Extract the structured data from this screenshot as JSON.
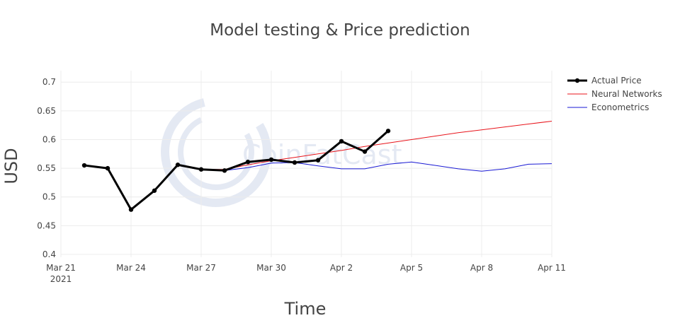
{
  "chart_data": {
    "type": "line",
    "title": "Model testing & Price prediction",
    "xlabel": "Time",
    "ylabel": "USD",
    "ylim": [
      0.395,
      0.72
    ],
    "xlim": [
      "2021-03-21",
      "2021-04-11"
    ],
    "yticks": [
      "0.4",
      "0.45",
      "0.5",
      "0.55",
      "0.6",
      "0.65",
      "0.7"
    ],
    "xticks": [
      {
        "date": "2021-03-21",
        "label": "Mar 21",
        "sublabel": "2021"
      },
      {
        "date": "2021-03-24",
        "label": "Mar 24"
      },
      {
        "date": "2021-03-27",
        "label": "Mar 27"
      },
      {
        "date": "2021-03-30",
        "label": "Mar 30"
      },
      {
        "date": "2021-04-02",
        "label": "Apr 2"
      },
      {
        "date": "2021-04-05",
        "label": "Apr 5"
      },
      {
        "date": "2021-04-08",
        "label": "Apr 8"
      },
      {
        "date": "2021-04-11",
        "label": "Apr 11"
      }
    ],
    "grid": true,
    "legend_position": "top-right",
    "watermark": "CoinFatCast",
    "series": [
      {
        "name": "Actual Price",
        "color": "#000000",
        "markers": true,
        "x": [
          "2021-03-22",
          "2021-03-23",
          "2021-03-24",
          "2021-03-25",
          "2021-03-26",
          "2021-03-27",
          "2021-03-28",
          "2021-03-29",
          "2021-03-30",
          "2021-03-31",
          "2021-04-01",
          "2021-04-02",
          "2021-04-03",
          "2021-04-04"
        ],
        "y": [
          0.555,
          0.55,
          0.478,
          0.511,
          0.556,
          0.548,
          0.546,
          0.561,
          0.565,
          0.56,
          0.564,
          0.597,
          0.579,
          0.615
        ]
      },
      {
        "name": "Neural Networks",
        "color": "#e8141b",
        "markers": false,
        "x": [
          "2021-03-22",
          "2021-03-23",
          "2021-03-24",
          "2021-03-25",
          "2021-03-26",
          "2021-03-27",
          "2021-03-28",
          "2021-03-29",
          "2021-03-30",
          "2021-03-31",
          "2021-04-01",
          "2021-04-02",
          "2021-04-03",
          "2021-04-04",
          "2021-04-05",
          "2021-04-06",
          "2021-04-07",
          "2021-04-08",
          "2021-04-09",
          "2021-04-10",
          "2021-04-11"
        ],
        "y": [
          0.555,
          0.55,
          0.478,
          0.511,
          0.556,
          0.548,
          0.548,
          0.556,
          0.563,
          0.569,
          0.575,
          0.581,
          0.588,
          0.594,
          0.6,
          0.606,
          0.612,
          0.617,
          0.622,
          0.627,
          0.632
        ]
      },
      {
        "name": "Econometrics",
        "color": "#1a1ad4",
        "markers": false,
        "x": [
          "2021-03-22",
          "2021-03-23",
          "2021-03-24",
          "2021-03-25",
          "2021-03-26",
          "2021-03-27",
          "2021-03-28",
          "2021-03-29",
          "2021-03-30",
          "2021-03-31",
          "2021-04-01",
          "2021-04-02",
          "2021-04-03",
          "2021-04-04",
          "2021-04-05",
          "2021-04-06",
          "2021-04-07",
          "2021-04-08",
          "2021-04-09",
          "2021-04-10",
          "2021-04-11"
        ],
        "y": [
          0.555,
          0.549,
          0.478,
          0.511,
          0.555,
          0.547,
          0.546,
          0.551,
          0.559,
          0.56,
          0.554,
          0.549,
          0.549,
          0.557,
          0.561,
          0.555,
          0.549,
          0.545,
          0.549,
          0.557,
          0.558
        ]
      }
    ]
  }
}
